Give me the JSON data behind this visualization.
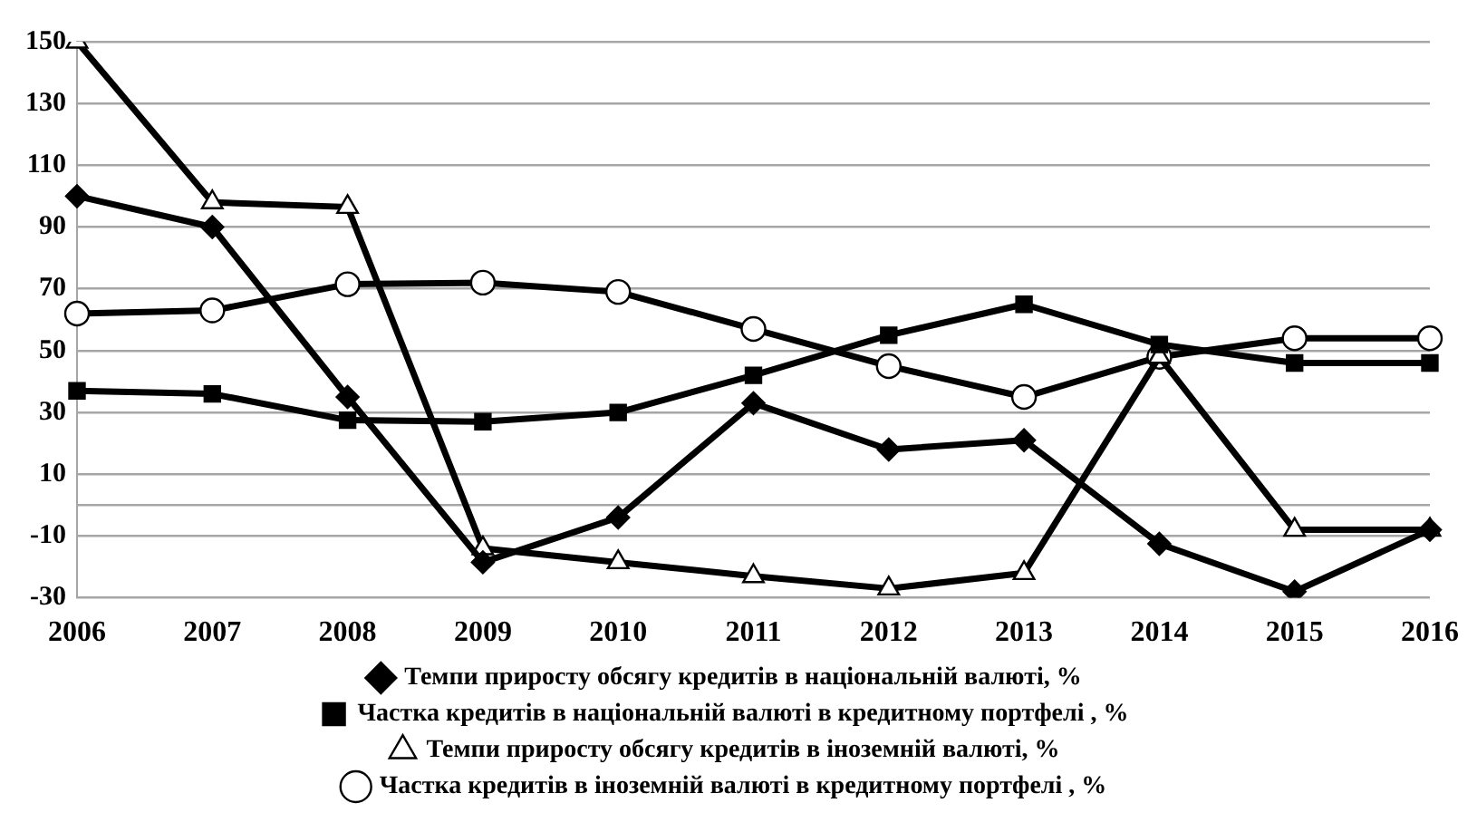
{
  "chart_data": {
    "type": "line",
    "categories": [
      "2006",
      "2007",
      "2008",
      "2009",
      "2010",
      "2011",
      "2012",
      "2013",
      "2014",
      "2015",
      "2016"
    ],
    "series": [
      {
        "name": "Темпи приросту обсягу кредитів в національній валюті, %",
        "color": "#000000",
        "marker": "diamond",
        "values": [
          100,
          90,
          35,
          -18.5,
          -4,
          33,
          18,
          21,
          -12.5,
          -28,
          -8
        ]
      },
      {
        "name": "Частка кредитів в національній валюті в кредитному портфелі , %",
        "color": "#000000",
        "marker": "square",
        "values": [
          37,
          36,
          27.5,
          27,
          30,
          42,
          55,
          65,
          52,
          46,
          46
        ]
      },
      {
        "name": "Темпи приросту обсягу кредитів в іноземній валюті, %",
        "color": "#000000",
        "marker": "triangle",
        "values": [
          150,
          98,
          96.5,
          -14,
          -18.5,
          -23,
          -27,
          -22,
          48,
          -8,
          -8
        ]
      },
      {
        "name": "Частка кредитів в іноземній валюті в кредитному портфелі , %",
        "color": "#000000",
        "marker": "circle",
        "values": [
          62,
          63,
          71.5,
          72,
          69,
          57,
          45,
          35,
          48,
          54,
          54
        ]
      }
    ],
    "ylim": [
      -30,
      150
    ],
    "yticks": [
      -30,
      -10,
      {
        "value": 0,
        "label": null
      },
      10,
      30,
      50,
      70,
      90,
      110,
      130,
      150
    ],
    "grid": "y",
    "legend": "bottom",
    "line_style": "solid"
  }
}
